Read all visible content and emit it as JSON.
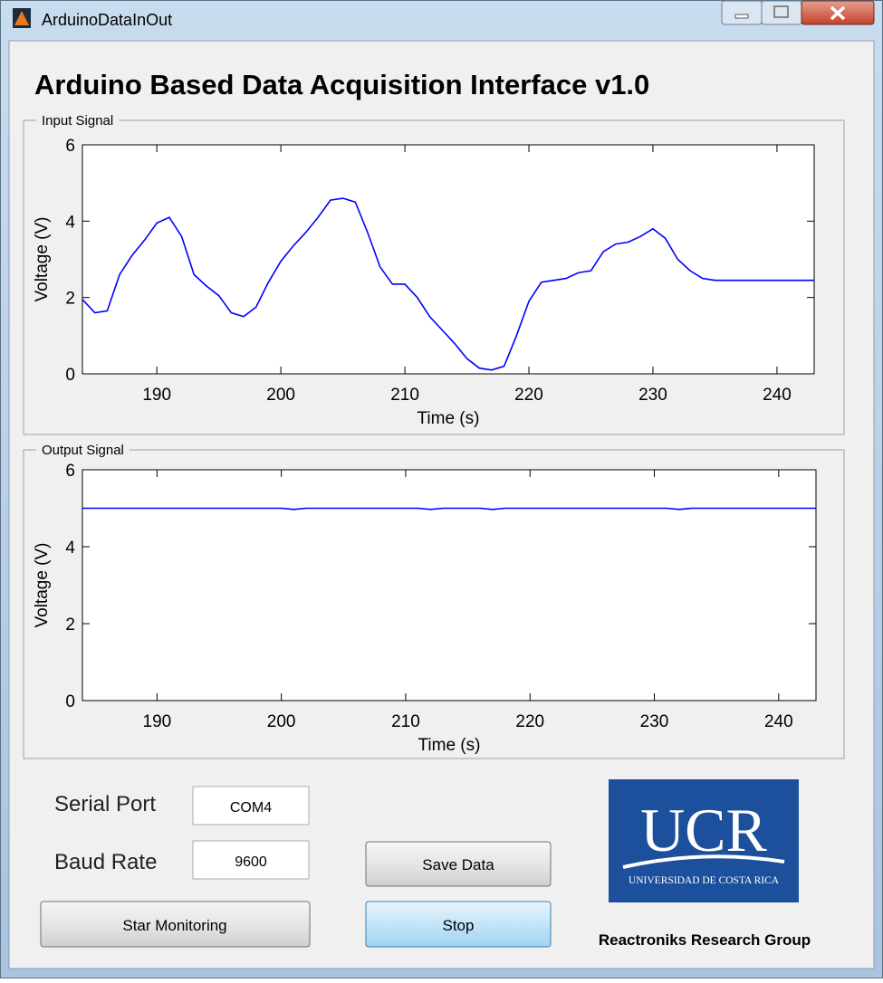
{
  "window": {
    "title": "ArduinoDataInOut"
  },
  "header": {
    "title": "Arduino Based Data Acquisition Interface v1.0"
  },
  "chart_data": [
    {
      "type": "line",
      "title": "Input Signal",
      "x_label": "Time (s)",
      "y_label": "Voltage (V)",
      "x": [
        184,
        185,
        186,
        187,
        188,
        189,
        190,
        191,
        192,
        193,
        194,
        195,
        196,
        197,
        198,
        199,
        200,
        201,
        202,
        203,
        204,
        205,
        206,
        207,
        208,
        209,
        210,
        211,
        212,
        213,
        214,
        215,
        216,
        217,
        218,
        219,
        220,
        221,
        222,
        223,
        224,
        225,
        226,
        227,
        228,
        229,
        230,
        231,
        232,
        233,
        234,
        235,
        236,
        237,
        238,
        239,
        240,
        241,
        242,
        243
      ],
      "series": [
        {
          "color": "#0000ff",
          "values": [
            1.95,
            1.6,
            1.65,
            2.6,
            3.1,
            3.5,
            3.95,
            4.1,
            3.6,
            2.6,
            2.3,
            2.05,
            1.6,
            1.5,
            1.75,
            2.4,
            2.95,
            3.35,
            3.7,
            4.1,
            4.55,
            4.6,
            4.5,
            3.7,
            2.8,
            2.35,
            2.35,
            2.0,
            1.5,
            1.15,
            0.8,
            0.4,
            0.15,
            0.1,
            0.2,
            1.0,
            1.9,
            2.4,
            2.45,
            2.5,
            2.65,
            2.7,
            3.2,
            3.4,
            3.45,
            3.6,
            3.8,
            3.55,
            3.0,
            2.7,
            2.5,
            2.45,
            2.45,
            2.45,
            2.45,
            2.45,
            2.45,
            2.45,
            2.45,
            2.45
          ]
        }
      ],
      "xlim": [
        184,
        243
      ],
      "ylim": [
        0,
        6
      ],
      "xticks": [
        190,
        200,
        210,
        220,
        230,
        240
      ],
      "yticks": [
        0,
        2,
        4,
        6
      ],
      "grid": false
    },
    {
      "type": "line",
      "title": "Output Signal",
      "x_label": "Time (s)",
      "y_label": "Voltage (V)",
      "x": [
        184,
        185,
        186,
        187,
        188,
        189,
        190,
        191,
        192,
        193,
        194,
        195,
        196,
        197,
        198,
        199,
        200,
        201,
        202,
        203,
        204,
        205,
        206,
        207,
        208,
        209,
        210,
        211,
        212,
        213,
        214,
        215,
        216,
        217,
        218,
        219,
        220,
        221,
        222,
        223,
        224,
        225,
        226,
        227,
        228,
        229,
        230,
        231,
        232,
        233,
        234,
        235,
        236,
        237,
        238,
        239,
        240,
        241,
        242,
        243
      ],
      "series": [
        {
          "color": "#0000ff",
          "values": [
            5,
            5,
            5,
            5,
            5,
            5,
            5,
            5,
            5,
            5,
            5,
            5,
            5,
            5,
            5,
            5,
            5,
            4.97,
            5,
            5,
            5,
            5,
            5,
            5,
            5,
            5,
            5,
            5,
            4.97,
            5,
            5,
            5,
            5,
            4.97,
            5,
            5,
            5,
            5,
            5,
            5,
            5,
            5,
            5,
            5,
            5,
            5,
            5,
            5,
            4.97,
            5,
            5,
            5,
            5,
            5,
            5,
            5,
            5,
            5,
            5,
            5
          ]
        }
      ],
      "xlim": [
        184,
        243
      ],
      "ylim": [
        0,
        6
      ],
      "xticks": [
        190,
        200,
        210,
        220,
        230,
        240
      ],
      "yticks": [
        0,
        2,
        4,
        6
      ],
      "grid": false
    }
  ],
  "controls": {
    "serial_port": {
      "label": "Serial Port",
      "value": "COM4"
    },
    "baud_rate": {
      "label": "Baud Rate",
      "value": "9600"
    },
    "save_button": "Save Data",
    "start_button": "Star Monitoring",
    "stop_button": "Stop"
  },
  "logo": {
    "text": "UCR",
    "subtitle": "UNIVERSIDAD DE COSTA RICA"
  },
  "footer": {
    "text": "Reactroniks Research Group"
  }
}
